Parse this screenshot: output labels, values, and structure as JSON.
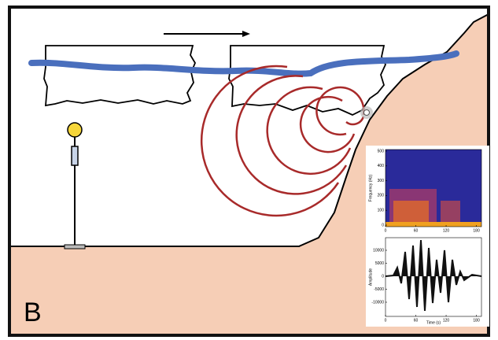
{
  "panel_label": "B",
  "spectrogram": {
    "y_label": "Frequency (Hz)",
    "yticks": [
      0,
      100,
      200,
      300,
      400,
      500
    ],
    "xticks": [
      0,
      60,
      120,
      180
    ]
  },
  "waveform": {
    "y_label": "Amplitude",
    "x_label": "Time (s)",
    "yticks": [
      -10000,
      -5000,
      0,
      5000,
      10000
    ],
    "xticks": [
      0,
      60,
      120,
      180
    ]
  }
}
